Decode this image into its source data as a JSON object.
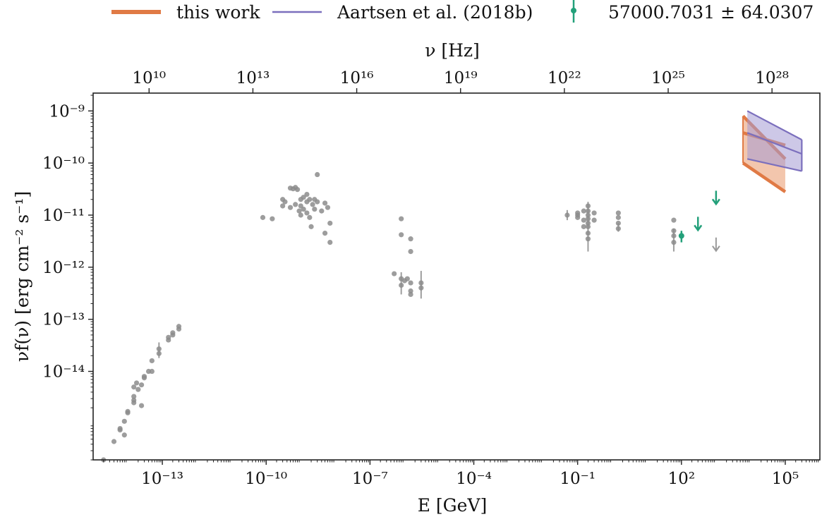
{
  "chart_data": {
    "type": "scatter",
    "xlabel": "E [GeV]",
    "ylabel": "νf(ν) [erg cm⁻² s⁻¹]",
    "top_xlabel": "ν [Hz]",
    "x_scale": "log",
    "y_scale": "log",
    "xlim": [
      1e-15,
      1000000.0
    ],
    "ylim": [
      2e-16,
      2.2e-09
    ],
    "grid": false,
    "legend_placement": "top (outside, above axes)",
    "x_ticks": [
      {
        "value": 1e-13,
        "label": "10⁻¹³"
      },
      {
        "value": 1e-10,
        "label": "10⁻¹⁰"
      },
      {
        "value": 1e-07,
        "label": "10⁻⁷"
      },
      {
        "value": 0.0001,
        "label": "10⁻⁴"
      },
      {
        "value": 0.1,
        "label": "10⁻¹"
      },
      {
        "value": 100,
        "label": "10²"
      },
      {
        "value": 100000,
        "label": "10⁵"
      }
    ],
    "y_ticks": [
      {
        "value": 1e-09,
        "label": "10⁻⁹"
      },
      {
        "value": 1e-10,
        "label": "10⁻¹⁰"
      },
      {
        "value": 1e-11,
        "label": "10⁻¹¹"
      },
      {
        "value": 1e-12,
        "label": "10⁻¹²"
      },
      {
        "value": 1e-13,
        "label": "10⁻¹³"
      },
      {
        "value": 1e-14,
        "label": "10⁻¹⁴"
      }
    ],
    "top_ticks": [
      {
        "value": 10000000000.0,
        "label": "10¹⁰"
      },
      {
        "value": 10000000000000.0,
        "label": "10¹³"
      },
      {
        "value": 1e+16,
        "label": "10¹⁶"
      },
      {
        "value": 1e+19,
        "label": "10¹⁹"
      },
      {
        "value": 1e+22,
        "label": "10²²"
      },
      {
        "value": 1e+25,
        "label": "10²⁵"
      },
      {
        "value": 1e+28,
        "label": "10²⁸"
      }
    ],
    "legend": [
      {
        "label": "this work",
        "color": "#e07a45",
        "marker": "thick-line"
      },
      {
        "label": "Aartsen et al. (2018b)",
        "color": "#7b6fbd",
        "marker": "thin-line"
      },
      {
        "label": "57000.7031 ± 64.0307",
        "color": "#23a07a",
        "marker": "point-errorbar"
      }
    ],
    "colors": {
      "archival": "#8c8c8c",
      "this_work": "#e07a45",
      "this_work_fill": "#efb391",
      "aartsen": "#7b6fbd",
      "aartsen_fill": "#a49bd3",
      "flare": "#23a07a"
    },
    "series": [
      {
        "kind": "archival",
        "points": [
          {
            "x": 2e-15,
            "y": 2e-16
          },
          {
            "x": 4e-15,
            "y": 4.5e-16
          },
          {
            "x": 6e-15,
            "y": 7.5e-16
          },
          {
            "x": 6e-15,
            "y": 8e-16
          },
          {
            "x": 8e-15,
            "y": 1.1e-15
          },
          {
            "x": 8e-15,
            "y": 6e-16
          },
          {
            "x": 1e-14,
            "y": 1.6e-15
          },
          {
            "x": 1e-14,
            "y": 1.7e-15
          },
          {
            "x": 1.5e-14,
            "y": 2.5e-15
          },
          {
            "x": 1.5e-14,
            "y": 3.3e-15
          },
          {
            "x": 1.5e-14,
            "y": 5e-15
          },
          {
            "x": 1.5e-14,
            "y": 2.8e-15
          },
          {
            "x": 1.8e-14,
            "y": 6e-15
          },
          {
            "x": 2e-14,
            "y": 4.5e-15
          },
          {
            "x": 2.5e-14,
            "y": 5.5e-15
          },
          {
            "x": 2.5e-14,
            "y": 2.2e-15
          },
          {
            "x": 3e-14,
            "y": 7.5e-15
          },
          {
            "x": 3e-14,
            "y": 8e-15
          },
          {
            "x": 4e-14,
            "y": 1e-14
          },
          {
            "x": 5e-14,
            "y": 1e-14
          },
          {
            "x": 5e-14,
            "y": 1.6e-14
          },
          {
            "x": 8e-14,
            "y": 2.2e-14,
            "yerr": [
              1.8e-14,
              3.6e-14
            ]
          },
          {
            "x": 8e-14,
            "y": 2.7e-14
          },
          {
            "x": 1.5e-13,
            "y": 4e-14
          },
          {
            "x": 1.5e-13,
            "y": 4.5e-14
          },
          {
            "x": 2e-13,
            "y": 5e-14
          },
          {
            "x": 2e-13,
            "y": 5.5e-14
          },
          {
            "x": 3e-13,
            "y": 6.5e-14
          },
          {
            "x": 3e-13,
            "y": 7.3e-14
          },
          {
            "x": 8e-11,
            "y": 9e-12
          },
          {
            "x": 1.5e-10,
            "y": 8.5e-12
          },
          {
            "x": 3e-10,
            "y": 1.5e-11
          },
          {
            "x": 3e-10,
            "y": 2e-11
          },
          {
            "x": 3.5e-10,
            "y": 1.8e-11
          },
          {
            "x": 5e-10,
            "y": 3.3e-11
          },
          {
            "x": 6e-10,
            "y": 3.2e-11
          },
          {
            "x": 7e-10,
            "y": 3.4e-11
          },
          {
            "x": 8e-10,
            "y": 3.1e-11
          },
          {
            "x": 5e-10,
            "y": 1.4e-11
          },
          {
            "x": 7e-10,
            "y": 1.6e-11
          },
          {
            "x": 9e-10,
            "y": 1.2e-11
          },
          {
            "x": 1e-09,
            "y": 2e-11
          },
          {
            "x": 1e-09,
            "y": 1.5e-11
          },
          {
            "x": 1e-09,
            "y": 1e-11
          },
          {
            "x": 1.2e-09,
            "y": 2.2e-11
          },
          {
            "x": 1.2e-09,
            "y": 1.3e-11
          },
          {
            "x": 1.5e-09,
            "y": 1.8e-11
          },
          {
            "x": 1.5e-09,
            "y": 1.1e-11
          },
          {
            "x": 1.5e-09,
            "y": 2.5e-11
          },
          {
            "x": 1.8e-09,
            "y": 2e-11
          },
          {
            "x": 1.8e-09,
            "y": 9e-12
          },
          {
            "x": 2e-09,
            "y": 6e-12
          },
          {
            "x": 2.2e-09,
            "y": 1.6e-11
          },
          {
            "x": 2.5e-09,
            "y": 1.3e-11
          },
          {
            "x": 2.5e-09,
            "y": 2e-11
          },
          {
            "x": 3e-09,
            "y": 1.8e-11
          },
          {
            "x": 3e-09,
            "y": 6e-11
          },
          {
            "x": 4e-09,
            "y": 1.2e-11
          },
          {
            "x": 5e-09,
            "y": 1.7e-11
          },
          {
            "x": 5e-09,
            "y": 4.5e-12
          },
          {
            "x": 6e-09,
            "y": 1.4e-11
          },
          {
            "x": 7e-09,
            "y": 7e-12
          },
          {
            "x": 7e-09,
            "y": 3e-12
          },
          {
            "x": 5e-07,
            "y": 7.5e-13
          },
          {
            "x": 8e-07,
            "y": 8.5e-12
          },
          {
            "x": 8e-07,
            "y": 4.2e-12
          },
          {
            "x": 8e-07,
            "y": 6e-13,
            "yerr": [
              3e-13,
              8e-13
            ]
          },
          {
            "x": 8e-07,
            "y": 4.5e-13
          },
          {
            "x": 1e-06,
            "y": 5.5e-13
          },
          {
            "x": 1.2e-06,
            "y": 6e-13
          },
          {
            "x": 1.5e-06,
            "y": 3.5e-12
          },
          {
            "x": 1.5e-06,
            "y": 2e-12
          },
          {
            "x": 1.5e-06,
            "y": 5e-13
          },
          {
            "x": 1.5e-06,
            "y": 3e-13
          },
          {
            "x": 1.5e-06,
            "y": 3.5e-13
          },
          {
            "x": 3e-06,
            "y": 5e-13,
            "yerr": [
              2.5e-13,
              8.5e-13
            ]
          },
          {
            "x": 3e-06,
            "y": 4e-13
          },
          {
            "x": 0.05,
            "y": 1e-11,
            "yerr": [
              8e-12,
              1.25e-11
            ]
          },
          {
            "x": 0.1,
            "y": 1e-11
          },
          {
            "x": 0.1,
            "y": 9e-12
          },
          {
            "x": 0.1,
            "y": 1.1e-11
          },
          {
            "x": 0.15,
            "y": 8e-12
          },
          {
            "x": 0.15,
            "y": 1.2e-11
          },
          {
            "x": 0.15,
            "y": 6e-12
          },
          {
            "x": 0.2,
            "y": 1.5e-11,
            "yerr": [
              2e-12,
              1.8e-11
            ]
          },
          {
            "x": 0.2,
            "y": 1.2e-11
          },
          {
            "x": 0.2,
            "y": 1e-11
          },
          {
            "x": 0.2,
            "y": 8.5e-12
          },
          {
            "x": 0.2,
            "y": 7e-12
          },
          {
            "x": 0.2,
            "y": 6e-12
          },
          {
            "x": 0.2,
            "y": 4.5e-12
          },
          {
            "x": 0.2,
            "y": 3.5e-12
          },
          {
            "x": 0.3,
            "y": 1.1e-11
          },
          {
            "x": 0.3,
            "y": 8e-12
          },
          {
            "x": 1.5,
            "y": 1.1e-11
          },
          {
            "x": 1.5,
            "y": 9e-12
          },
          {
            "x": 1.5,
            "y": 7e-12
          },
          {
            "x": 1.5,
            "y": 5.5e-12,
            "yerr": [
              4.8e-12,
              7e-12
            ]
          },
          {
            "x": 60,
            "y": 8e-12
          },
          {
            "x": 60,
            "y": 5e-12
          },
          {
            "x": 60,
            "y": 4e-12,
            "yerr": [
              2e-12,
              5.5e-12
            ]
          },
          {
            "x": 60,
            "y": 3e-12
          }
        ],
        "upper_limits": [
          {
            "x": 1000,
            "y": 2.4e-12
          }
        ]
      },
      {
        "kind": "flare",
        "name": "57000.7031 ± 64.0307",
        "points": [
          {
            "x": 100,
            "y": 4e-12,
            "yerr": [
              3e-12,
              5e-12
            ]
          }
        ],
        "upper_limits": [
          {
            "x": 300,
            "y": 6e-12
          },
          {
            "x": 1000,
            "y": 1.9e-11
          }
        ]
      },
      {
        "kind": "this_work",
        "name": "this work",
        "x": [
          6000,
          100000
        ],
        "best_fit": [
          3.8e-10,
          2.2e-10
        ],
        "band_upper": [
          8e-10,
          1.2e-10
        ],
        "band_lower": [
          1e-10,
          2.8e-11
        ],
        "band_mid": [
          1.8e-10,
          3.5e-10
        ],
        "band_mid_y": [
          1e-10,
          3.5e-11
        ]
      },
      {
        "kind": "aartsen",
        "name": "Aartsen et al. (2018b)",
        "x": [
          8000,
          300000
        ],
        "best_fit": [
          3.8e-10,
          1.5e-10
        ],
        "band_upper": [
          1e-09,
          2.8e-10
        ],
        "band_lower": [
          1.2e-10,
          7e-11
        ]
      }
    ]
  }
}
